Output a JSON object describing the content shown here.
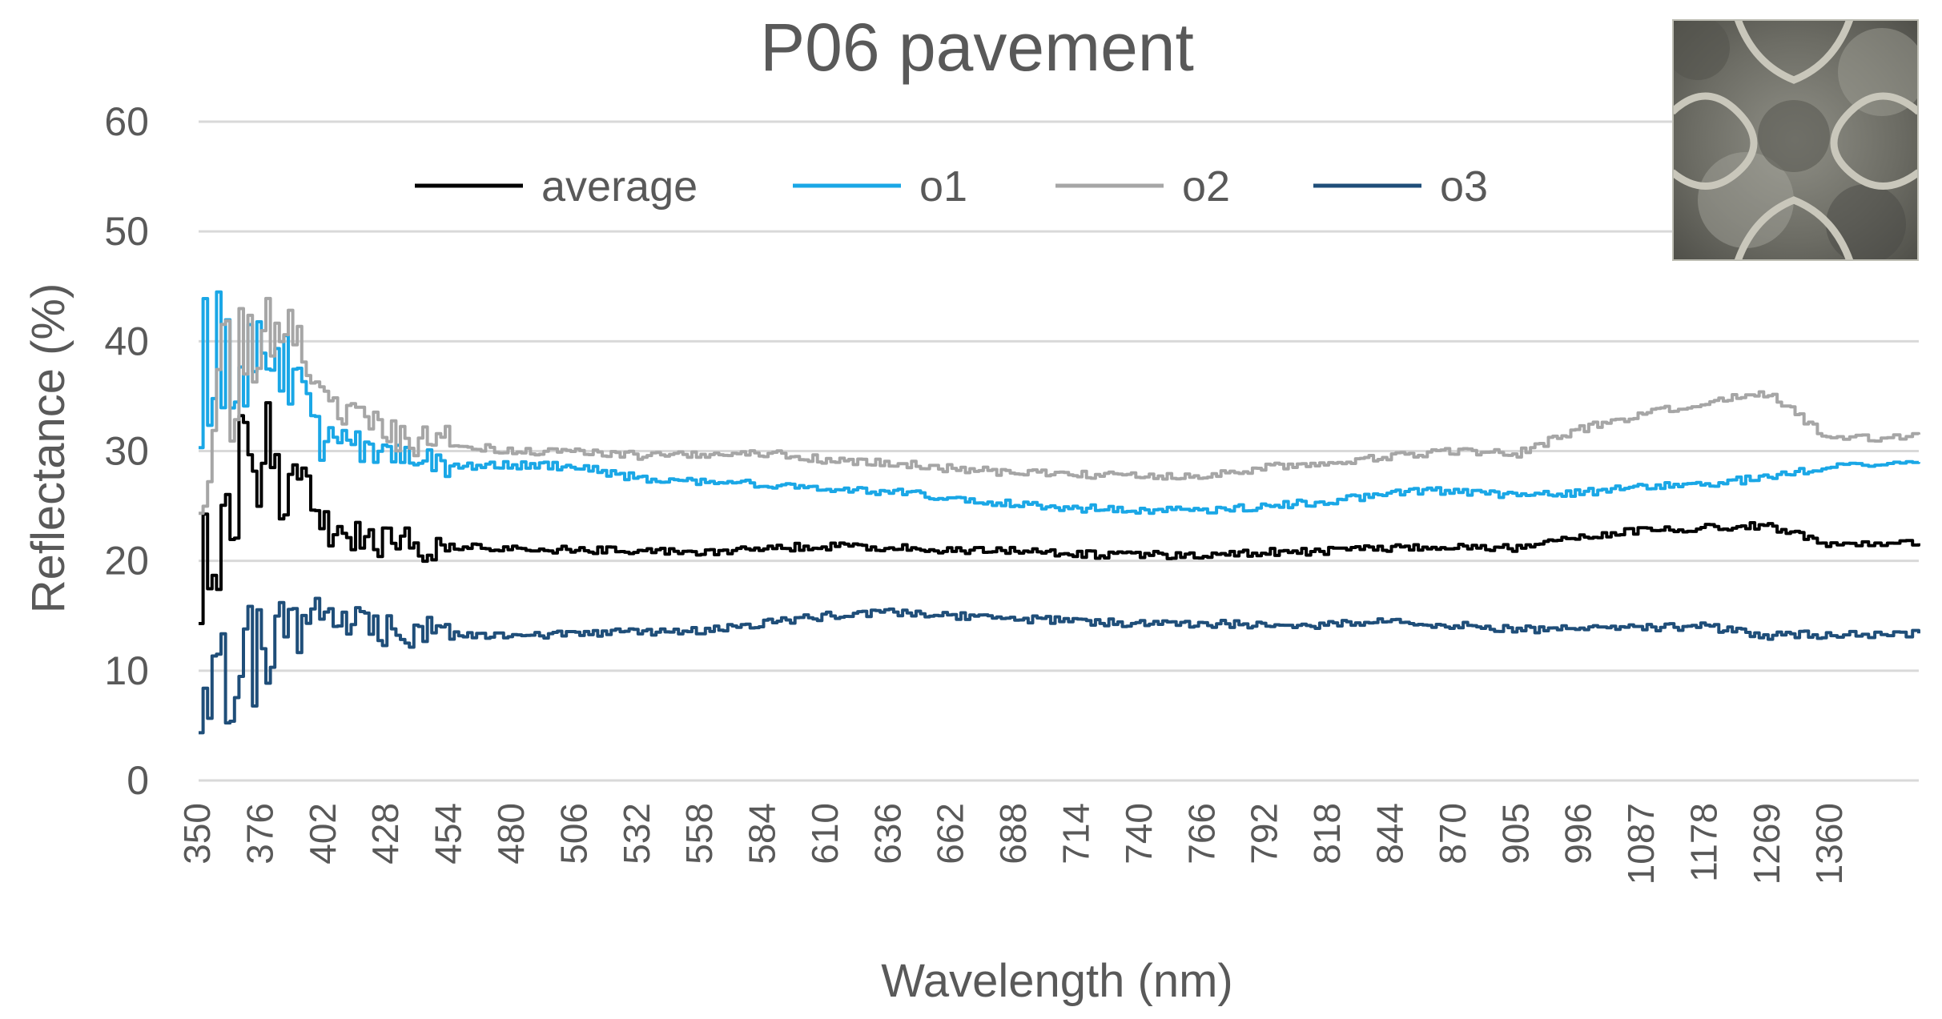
{
  "chart_data": {
    "type": "line",
    "title": "P06 pavement",
    "xlabel": "Wavelength (nm)",
    "ylabel": "Reflectance (%)",
    "ylim": [
      0,
      60
    ],
    "yticks": [
      0,
      10,
      20,
      30,
      40,
      50,
      60
    ],
    "grid": true,
    "legend_position": "top",
    "x_tick_labels": [
      "350",
      "376",
      "402",
      "428",
      "454",
      "480",
      "506",
      "532",
      "558",
      "584",
      "610",
      "636",
      "662",
      "688",
      "714",
      "740",
      "766",
      "792",
      "818",
      "844",
      "870",
      "905",
      "996",
      "1087",
      "1178",
      "1269",
      "1360"
    ],
    "x_positions": [
      0,
      1,
      2,
      3,
      4,
      5,
      6,
      7,
      8,
      9,
      10,
      11,
      12,
      13,
      14,
      15,
      16,
      17,
      18,
      19,
      20,
      21,
      22,
      23,
      24,
      25,
      26,
      27.4
    ],
    "series": [
      {
        "name": "average",
        "color": "#000000",
        "values": [
          22,
          30,
          23,
          21.5,
          21.3,
          21,
          21,
          21,
          20.8,
          21.2,
          21.3,
          21.2,
          21,
          20.9,
          20.6,
          20.5,
          20.6,
          20.8,
          20.9,
          21.2,
          21.3,
          21.2,
          22.3,
          22.8,
          23,
          23.2,
          21.5,
          21.6
        ]
      },
      {
        "name": "o1",
        "color": "#1aa7e6",
        "values": [
          38,
          40,
          31,
          30,
          28.6,
          28.7,
          28.6,
          27.5,
          27.2,
          27,
          26.6,
          26.3,
          25.8,
          25.1,
          24.8,
          24.6,
          24.6,
          25,
          25.4,
          26.2,
          26.4,
          26,
          26.2,
          26.8,
          27,
          27.6,
          28.7,
          29
        ]
      },
      {
        "name": "o2",
        "color": "#a6a6a6",
        "values": [
          32,
          42,
          34,
          31.5,
          30.6,
          30,
          29.9,
          29.6,
          29.7,
          29.8,
          29.2,
          28.9,
          28.4,
          28,
          27.9,
          27.7,
          27.8,
          28.5,
          28.9,
          29.6,
          30,
          29.8,
          32,
          33.4,
          34.5,
          35.2,
          31,
          31.5
        ]
      },
      {
        "name": "o3",
        "color": "#1f4e79",
        "values": [
          12,
          13,
          15.5,
          13.5,
          13.2,
          13.1,
          13.4,
          13.5,
          13.6,
          14.3,
          15,
          15.3,
          15,
          14.7,
          14.5,
          14.3,
          14.3,
          14.2,
          14.2,
          14.5,
          14.1,
          13.8,
          13.8,
          13.9,
          14,
          13.2,
          13.3,
          13.4
        ]
      }
    ],
    "inset_photo": "pavement-tile-photo"
  }
}
